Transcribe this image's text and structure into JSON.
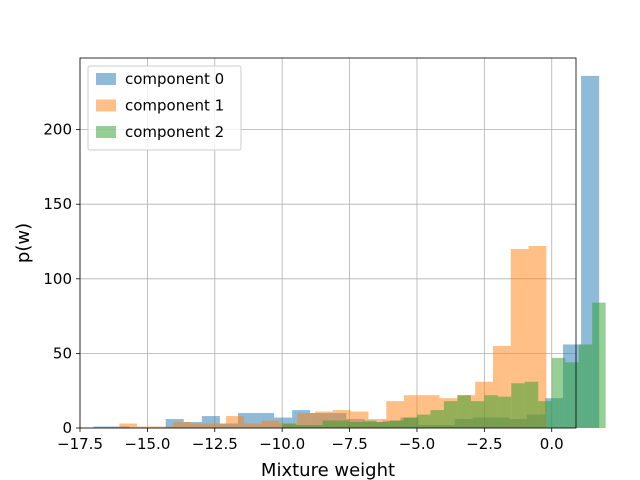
{
  "chart_data": {
    "type": "bar",
    "subtype": "overlapping-histogram",
    "title": "",
    "xlabel": "Mixture weight",
    "ylabel": "p(w)",
    "xlim": [
      -17.5,
      0.9
    ],
    "ylim": [
      0,
      248
    ],
    "grid": true,
    "legend_position": "top-left",
    "bar_opacity": 0.5,
    "xticks": [
      -17.5,
      -15.0,
      -12.5,
      -10.0,
      -7.5,
      -5.0,
      -2.5,
      0.0
    ],
    "xtick_labels": [
      "−17.5",
      "−15.0",
      "−12.5",
      "−10.0",
      "−7.5",
      "−5.0",
      "−2.5",
      "0.0"
    ],
    "yticks": [
      0,
      50,
      100,
      150,
      200
    ],
    "ytick_labels": [
      "0",
      "50",
      "100",
      "150",
      "200"
    ],
    "series": [
      {
        "name": "component 0",
        "color": "#1f77b4",
        "bin_start": -17.0,
        "bin_width": 0.67,
        "counts": [
          1,
          1,
          0,
          0,
          6,
          4,
          8,
          3,
          10,
          10,
          7,
          12,
          10,
          10,
          6,
          4,
          5,
          7,
          2,
          2,
          6,
          7,
          7,
          6,
          9,
          20,
          56,
          236
        ]
      },
      {
        "name": "component 1",
        "color": "#ff7f0e",
        "bin_start": -16.7,
        "bin_width": 0.66,
        "counts": [
          0,
          3,
          1,
          1,
          4,
          3,
          3,
          8,
          3,
          5,
          3,
          10,
          11,
          12,
          11,
          6,
          18,
          22,
          22,
          20,
          22,
          31,
          55,
          120,
          122
        ]
      },
      {
        "name": "component 2",
        "color": "#2ca02c",
        "bin_start": -10.0,
        "bin_width": 0.5,
        "counts": [
          3,
          2,
          2,
          5,
          5,
          4,
          5,
          4,
          5,
          7,
          9,
          12,
          18,
          22,
          18,
          22,
          21,
          30,
          31,
          18,
          47,
          44,
          56,
          84
        ]
      }
    ]
  }
}
